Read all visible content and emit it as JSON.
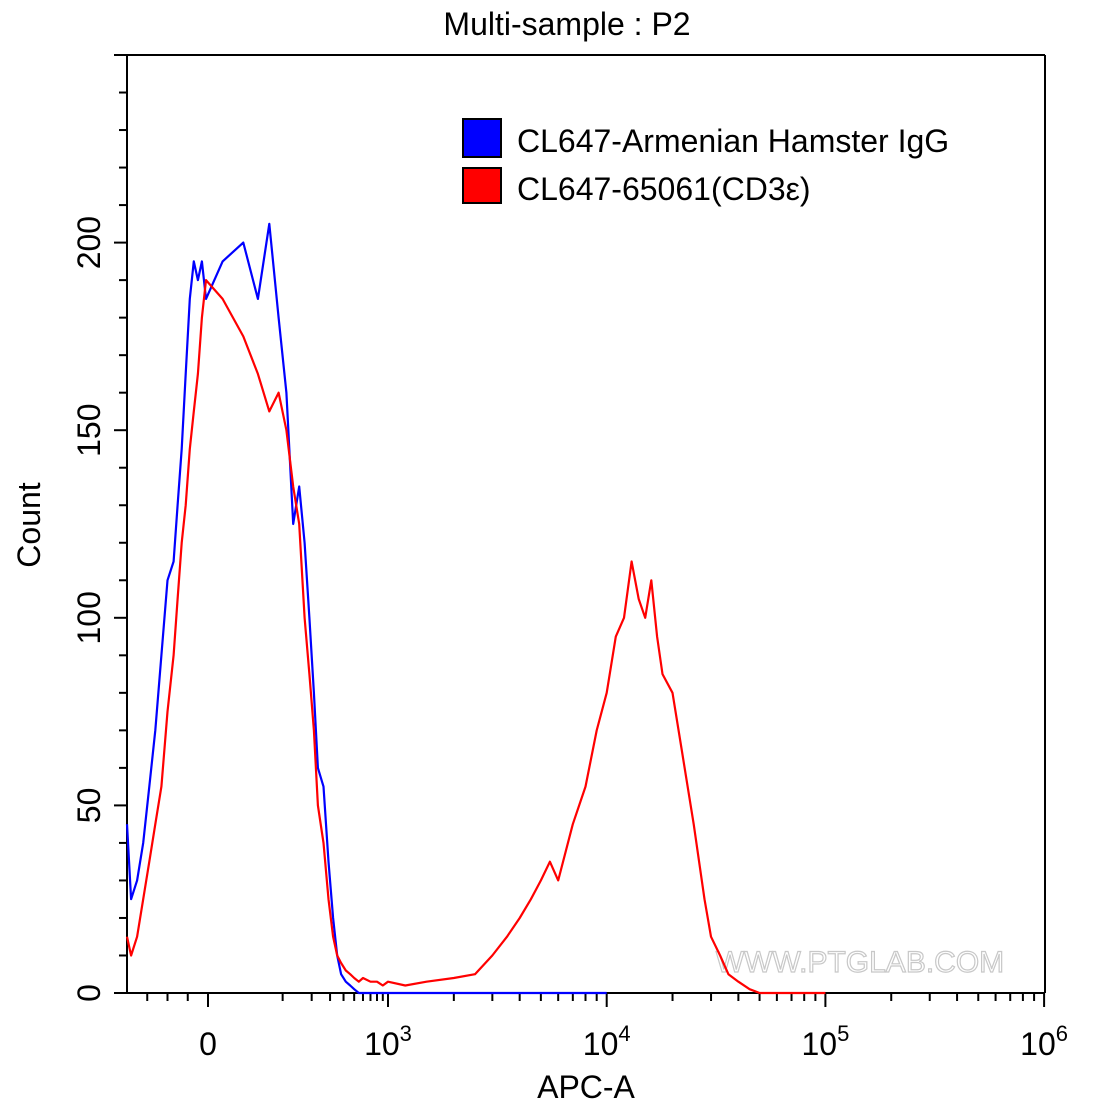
{
  "chart_data": {
    "type": "line",
    "title": "Multi-sample : P2",
    "xlabel": "APC-A",
    "ylabel": "Count",
    "x_scale": "biexponential",
    "xlim": [
      -400,
      1000000
    ],
    "ylim": [
      0,
      250
    ],
    "x_ticks": [
      {
        "value": 0,
        "base": "0",
        "exp": ""
      },
      {
        "value": 1000,
        "base": "10",
        "exp": "3"
      },
      {
        "value": 10000,
        "base": "10",
        "exp": "4"
      },
      {
        "value": 100000,
        "base": "10",
        "exp": "5"
      },
      {
        "value": 1000000,
        "base": "10",
        "exp": "6"
      }
    ],
    "y_ticks": [
      0,
      50,
      100,
      150,
      200
    ],
    "legend_position": "top-right",
    "watermark": "WWW.PTGLAB.COM",
    "series": [
      {
        "name": "CL647-Armenian Hamster IgG",
        "color": "#0000ff",
        "x": [
          -400,
          -380,
          -350,
          -320,
          -290,
          -260,
          -230,
          -200,
          -170,
          -150,
          -130,
          -110,
          -90,
          -70,
          -50,
          -30,
          -10,
          10,
          30,
          50,
          70,
          90,
          110,
          130,
          150,
          170,
          190,
          210,
          230,
          260,
          290,
          320,
          350,
          380,
          420,
          460,
          500,
          550,
          600,
          700,
          800,
          1000,
          1500,
          2000,
          3000,
          5000,
          10000
        ],
        "y": [
          45,
          25,
          30,
          40,
          55,
          70,
          90,
          110,
          115,
          130,
          145,
          165,
          185,
          195,
          190,
          195,
          185,
          195,
          200,
          185,
          205,
          180,
          160,
          125,
          135,
          120,
          100,
          80,
          60,
          55,
          35,
          20,
          10,
          5,
          3,
          2,
          1,
          0,
          0,
          0,
          0,
          0,
          0,
          0,
          0,
          0,
          0
        ]
      },
      {
        "name": "CL647-65061(CD3ε)",
        "color": "#ff0000",
        "x": [
          -400,
          -380,
          -350,
          -320,
          -290,
          -260,
          -230,
          -200,
          -170,
          -150,
          -130,
          -110,
          -90,
          -70,
          -50,
          -30,
          -10,
          10,
          30,
          50,
          70,
          90,
          110,
          130,
          150,
          170,
          190,
          210,
          230,
          260,
          290,
          320,
          350,
          380,
          420,
          460,
          500,
          550,
          600,
          700,
          800,
          900,
          1000,
          1200,
          1500,
          2000,
          2500,
          3000,
          3500,
          4000,
          4500,
          5000,
          5500,
          6000,
          7000,
          8000,
          9000,
          10000,
          11000,
          12000,
          13000,
          14000,
          15000,
          16000,
          17000,
          18000,
          20000,
          22000,
          25000,
          28000,
          30000,
          33000,
          36000,
          40000,
          45000,
          50000,
          60000,
          80000,
          100000
        ],
        "y": [
          15,
          10,
          15,
          25,
          35,
          45,
          55,
          75,
          90,
          105,
          120,
          130,
          145,
          155,
          165,
          180,
          190,
          185,
          175,
          165,
          155,
          160,
          150,
          135,
          125,
          100,
          85,
          70,
          50,
          40,
          25,
          15,
          10,
          8,
          6,
          5,
          4,
          3,
          4,
          3,
          3,
          2,
          3,
          2,
          3,
          4,
          5,
          10,
          15,
          20,
          25,
          30,
          35,
          30,
          45,
          55,
          70,
          80,
          95,
          100,
          115,
          105,
          100,
          110,
          95,
          85,
          80,
          65,
          45,
          25,
          15,
          10,
          5,
          3,
          1,
          0,
          0,
          0,
          0
        ]
      }
    ]
  }
}
